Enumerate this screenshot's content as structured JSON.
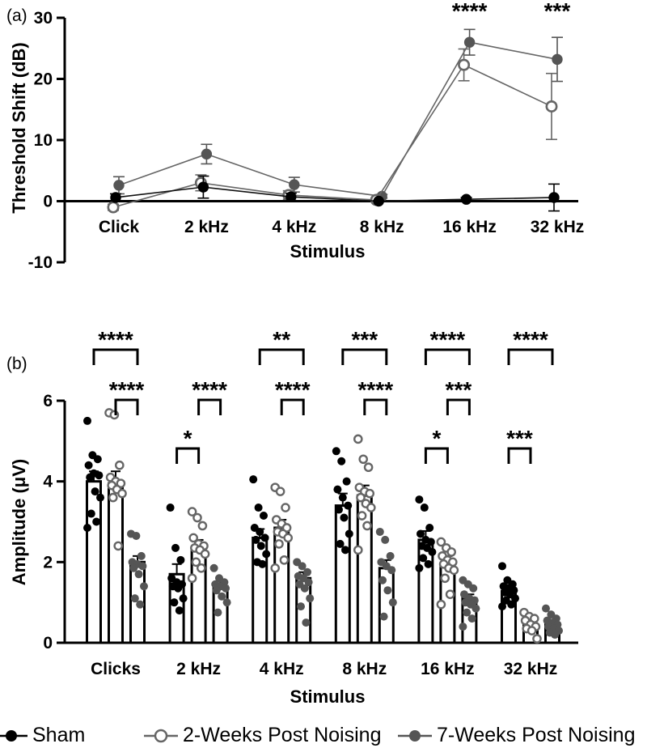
{
  "colors": {
    "sham": "#000000",
    "two_weeks": "#666666",
    "seven_weeks": "#555555",
    "axis": "#000000"
  },
  "chart_data": [
    {
      "panel_label": "(a)",
      "type": "line",
      "xlabel": "Stimulus",
      "ylabel": "Threshold Shift (dB)",
      "categories": [
        "Click",
        "2 kHz",
        "4 kHz",
        "8 kHz",
        "16 kHz",
        "32 kHz"
      ],
      "ylim": [
        -10,
        30
      ],
      "yticks": [
        -10,
        0,
        10,
        20,
        30
      ],
      "series": [
        {
          "name": "Sham",
          "marker": "filled-black",
          "values": [
            0.6,
            2.3,
            0.7,
            0.0,
            0.3,
            0.6
          ],
          "errors": [
            0.6,
            1.8,
            0.6,
            0.1,
            0.3,
            2.2
          ]
        },
        {
          "name": "2-Weeks Post Noising",
          "marker": "open",
          "values": [
            -1.0,
            3.0,
            1.0,
            0.2,
            22.3,
            15.5
          ],
          "errors": [
            0.5,
            1.3,
            0.7,
            0.2,
            2.6,
            5.4
          ]
        },
        {
          "name": "7-Weeks Post Noising",
          "marker": "filled-gray",
          "values": [
            2.6,
            7.7,
            2.7,
            0.8,
            26.0,
            23.2
          ],
          "errors": [
            1.4,
            1.6,
            1.2,
            0.3,
            2.1,
            3.6
          ]
        }
      ],
      "annotations": [
        {
          "category": "16 kHz",
          "text": "****"
        },
        {
          "category": "32 kHz",
          "text": "***"
        }
      ]
    },
    {
      "panel_label": "(b)",
      "type": "bar",
      "xlabel": "Stimulus",
      "ylabel": "Amplitude (μV)",
      "categories": [
        "Clicks",
        "2 kHz",
        "4 kHz",
        "8 kHz",
        "16 kHz",
        "32 kHz"
      ],
      "ylim": [
        0,
        6
      ],
      "yticks": [
        0,
        2,
        4,
        6
      ],
      "series": [
        {
          "name": "Sham",
          "values": [
            4.0,
            1.7,
            2.6,
            3.4,
            2.55,
            1.28
          ],
          "errors": [
            0.25,
            0.25,
            0.22,
            0.3,
            0.22,
            0.1
          ]
        },
        {
          "name": "2-Weeks Post Noising",
          "values": [
            3.95,
            2.35,
            2.85,
            3.65,
            1.95,
            0.45
          ],
          "errors": [
            0.3,
            0.2,
            0.2,
            0.25,
            0.2,
            0.1
          ]
        },
        {
          "name": "7-Weeks Post Noising",
          "values": [
            2.0,
            1.4,
            1.6,
            1.85,
            1.1,
            0.45
          ],
          "errors": [
            0.15,
            0.12,
            0.15,
            0.2,
            0.1,
            0.08
          ]
        }
      ],
      "points": [
        [
          [
            5.5,
            4.65,
            4.55,
            4.4,
            4.2,
            4.15,
            4.1,
            3.75,
            3.6,
            3.2,
            3.0,
            2.85
          ],
          [
            5.7,
            5.65,
            4.4,
            4.1,
            4.0,
            3.95,
            3.9,
            3.8,
            3.7,
            3.6,
            2.4
          ],
          [
            2.7,
            2.65,
            2.15,
            2.0,
            1.95,
            1.9,
            1.85,
            1.7,
            1.4,
            1.1,
            0.95
          ]
        ],
        [
          [
            3.35,
            2.35,
            2.05,
            1.6,
            1.5,
            1.45,
            1.4,
            1.35,
            1.1,
            1.0,
            0.8
          ],
          [
            3.25,
            3.1,
            2.9,
            2.6,
            2.45,
            2.4,
            2.35,
            2.3,
            2.2,
            2.0,
            1.85,
            1.6
          ],
          [
            1.85,
            1.6,
            1.5,
            1.45,
            1.4,
            1.35,
            1.3,
            1.15,
            1.0,
            0.75
          ]
        ],
        [
          [
            4.05,
            3.35,
            3.15,
            2.85,
            2.75,
            2.6,
            2.55,
            2.4,
            2.2,
            2.0,
            1.95
          ],
          [
            3.85,
            3.75,
            3.35,
            3.05,
            2.95,
            2.85,
            2.75,
            2.7,
            2.6,
            2.45,
            2.05,
            1.85
          ],
          [
            2.0,
            1.9,
            1.75,
            1.65,
            1.6,
            1.5,
            1.45,
            1.35,
            1.1,
            0.9,
            0.5
          ]
        ],
        [
          [
            4.75,
            4.5,
            4.0,
            3.8,
            3.6,
            3.4,
            3.3,
            3.1,
            2.7,
            2.45,
            2.3
          ],
          [
            5.05,
            4.55,
            4.35,
            3.85,
            3.75,
            3.7,
            3.6,
            3.45,
            3.35,
            3.15,
            2.9,
            2.3
          ],
          [
            2.75,
            2.55,
            2.15,
            2.0,
            1.9,
            1.8,
            1.55,
            1.3,
            1.0,
            0.65
          ]
        ],
        [
          [
            3.55,
            3.35,
            2.85,
            2.7,
            2.55,
            2.5,
            2.4,
            2.35,
            2.25,
            2.1,
            1.95,
            1.85
          ],
          [
            2.5,
            2.35,
            2.25,
            2.15,
            2.05,
            2.0,
            1.95,
            1.85,
            1.8,
            1.6,
            1.2,
            0.95
          ],
          [
            1.55,
            1.45,
            1.35,
            1.2,
            1.1,
            1.05,
            1.0,
            0.95,
            0.85,
            0.75,
            0.6,
            0.4
          ]
        ],
        [
          [
            1.9,
            1.55,
            1.45,
            1.4,
            1.35,
            1.3,
            1.25,
            1.2,
            1.1,
            1.05,
            0.95,
            0.9
          ],
          [
            0.75,
            0.65,
            0.6,
            0.55,
            0.45,
            0.4,
            0.35,
            0.3,
            0.1
          ],
          [
            0.85,
            0.7,
            0.6,
            0.55,
            0.5,
            0.45,
            0.4,
            0.35,
            0.3,
            0.25,
            0.2
          ]
        ]
      ],
      "significance": [
        {
          "category": "Clicks",
          "from": 0,
          "to": 2,
          "text": "****",
          "row": "top"
        },
        {
          "category": "Clicks",
          "from": 1,
          "to": 2,
          "text": "****",
          "row": "middle"
        },
        {
          "category": "2 kHz",
          "from": 1,
          "to": 2,
          "text": "****",
          "row": "middle"
        },
        {
          "category": "2 kHz",
          "from": 0,
          "to": 1,
          "text": "*",
          "row": "bottom"
        },
        {
          "category": "4 kHz",
          "from": 0,
          "to": 2,
          "text": "**",
          "row": "top"
        },
        {
          "category": "4 kHz",
          "from": 1,
          "to": 2,
          "text": "****",
          "row": "middle"
        },
        {
          "category": "8 kHz",
          "from": 0,
          "to": 2,
          "text": "***",
          "row": "top"
        },
        {
          "category": "8 kHz",
          "from": 1,
          "to": 2,
          "text": "****",
          "row": "middle"
        },
        {
          "category": "16 kHz",
          "from": 0,
          "to": 2,
          "text": "****",
          "row": "top"
        },
        {
          "category": "16 kHz",
          "from": 1,
          "to": 2,
          "text": "***",
          "row": "middle"
        },
        {
          "category": "16 kHz",
          "from": 0,
          "to": 1,
          "text": "*",
          "row": "bottom"
        },
        {
          "category": "32 kHz",
          "from": 0,
          "to": 2,
          "text": "****",
          "row": "top"
        },
        {
          "category": "32 kHz",
          "from": 0,
          "to": 1,
          "text": "***",
          "row": "bottom"
        }
      ]
    }
  ],
  "legend": {
    "position": "bottom",
    "items": [
      {
        "label": "Sham",
        "marker": "filled-black"
      },
      {
        "label": "2-Weeks Post Noising",
        "marker": "open"
      },
      {
        "label": "7-Weeks Post Noising",
        "marker": "filled-gray"
      }
    ]
  }
}
